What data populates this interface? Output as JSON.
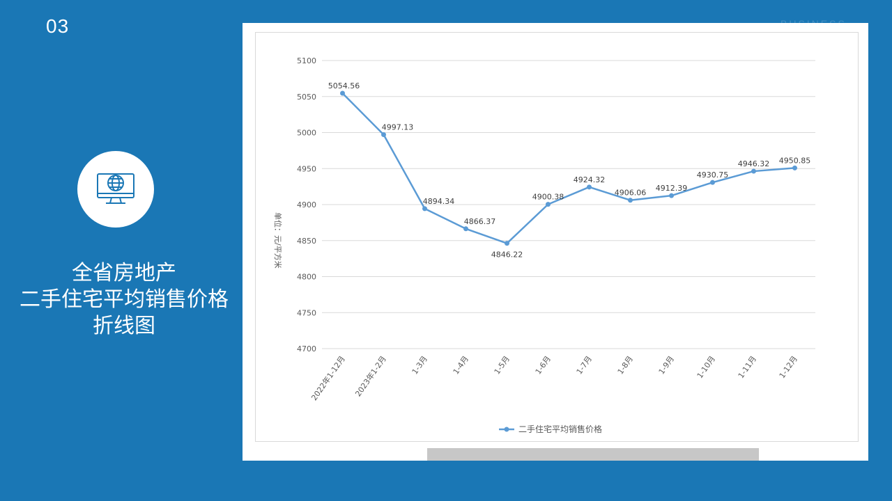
{
  "slide": {
    "number": "03",
    "watermark": "BUSINESS",
    "title_lines": [
      "全省房地产",
      "二手住宅平均销售价格",
      "折线图"
    ]
  },
  "icon": {
    "name": "globe-monitor-icon"
  },
  "colors": {
    "background": "#1a77b5",
    "series": "#5b9bd5"
  },
  "chart_data": {
    "type": "line",
    "title": "",
    "ylabel": "单位：元/平方米",
    "xlabel": "",
    "ylim": [
      4700,
      5100
    ],
    "y_ticks": [
      4700,
      4750,
      4800,
      4850,
      4900,
      4950,
      5000,
      5050,
      5100
    ],
    "grid": true,
    "legend": "bottom",
    "categories": [
      "2022年1-12月",
      "2023年1-2月",
      "1-3月",
      "1-4月",
      "1-5月",
      "1-6月",
      "1-7月",
      "1-8月",
      "1-9月",
      "1-10月",
      "1-11月",
      "1-12月"
    ],
    "series": [
      {
        "name": "二手住宅平均销售价格",
        "values": [
          5054.56,
          4997.13,
          4894.34,
          4866.37,
          4846.22,
          4900.38,
          4924.32,
          4906.06,
          4912.39,
          4930.75,
          4946.32,
          4950.85
        ],
        "labels": [
          "5054.56",
          "4997.13",
          "4894.34",
          "4866.37",
          "4846.22",
          "4900.38",
          "4924.32",
          "4906.06",
          "4912.39",
          "4930.75",
          "4946.32",
          "4950.85"
        ]
      }
    ]
  }
}
